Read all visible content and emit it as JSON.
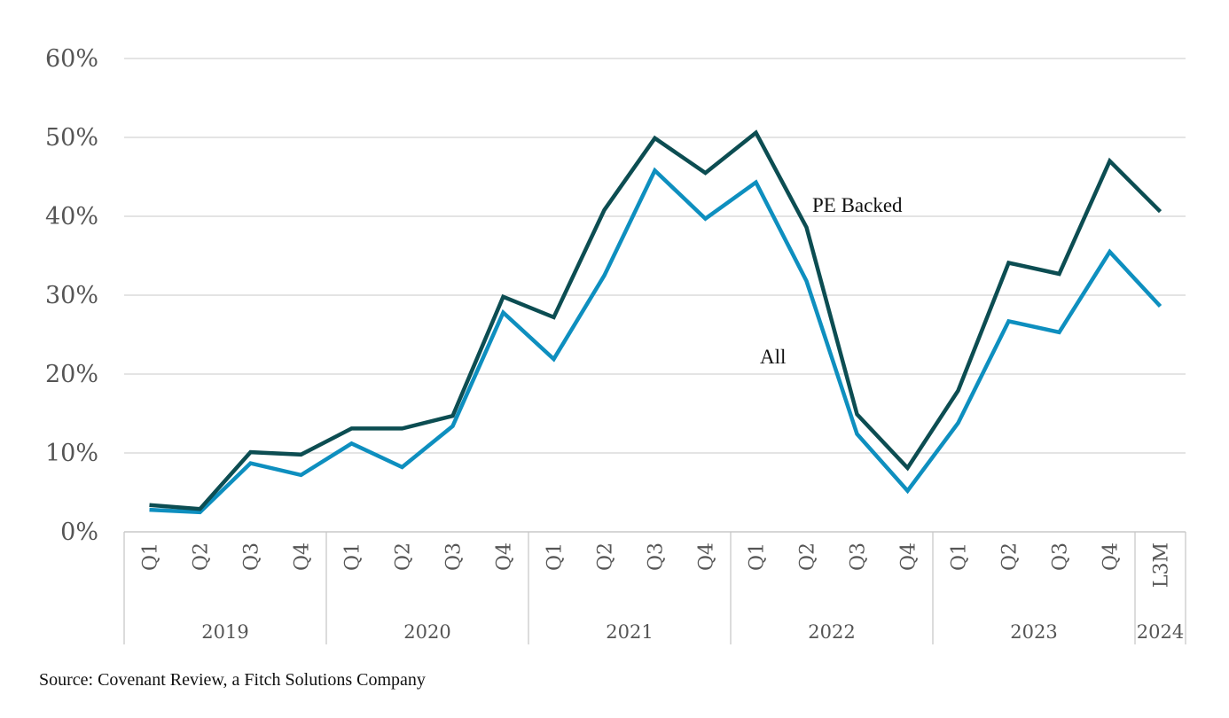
{
  "chart_data": {
    "type": "line",
    "title": "",
    "xlabel": "",
    "ylabel": "",
    "ylim": [
      0,
      60
    ],
    "yticks": [
      0,
      10,
      20,
      30,
      40,
      50,
      60
    ],
    "ytick_labels": [
      "0%",
      "10%",
      "20%",
      "30%",
      "40%",
      "50%",
      "60%"
    ],
    "grid": true,
    "categories": [
      "Q1",
      "Q2",
      "Q3",
      "Q4",
      "Q1",
      "Q2",
      "Q3",
      "Q4",
      "Q1",
      "Q2",
      "Q3",
      "Q4",
      "Q1",
      "Q2",
      "Q3",
      "Q4",
      "Q1",
      "Q2",
      "Q3",
      "Q4",
      "L3M"
    ],
    "groups": [
      {
        "label": "2019",
        "count": 4
      },
      {
        "label": "2020",
        "count": 4
      },
      {
        "label": "2021",
        "count": 4
      },
      {
        "label": "2022",
        "count": 4
      },
      {
        "label": "2023",
        "count": 4
      },
      {
        "label": "2024",
        "count": 1
      }
    ],
    "series": [
      {
        "name": "PE Backed",
        "color": "#0c4d52",
        "values": [
          3.4,
          2.9,
          10.1,
          9.8,
          13.1,
          13.1,
          14.7,
          29.8,
          27.2,
          40.8,
          49.9,
          45.5,
          50.6,
          38.6,
          14.9,
          8.1,
          17.9,
          34.1,
          32.7,
          47.0,
          40.6
        ]
      },
      {
        "name": "All",
        "color": "#0e8fbf",
        "values": [
          2.8,
          2.5,
          8.7,
          7.2,
          11.2,
          8.2,
          13.4,
          27.8,
          21.9,
          32.5,
          45.8,
          39.7,
          44.3,
          31.8,
          12.4,
          5.2,
          13.8,
          26.7,
          25.3,
          35.5,
          28.6
        ]
      }
    ],
    "annotations": [
      {
        "text": "PE Backed",
        "series": "PE Backed"
      },
      {
        "text": "All",
        "series": "All"
      }
    ]
  },
  "source": "Source: Covenant Review, a Fitch Solutions Company"
}
